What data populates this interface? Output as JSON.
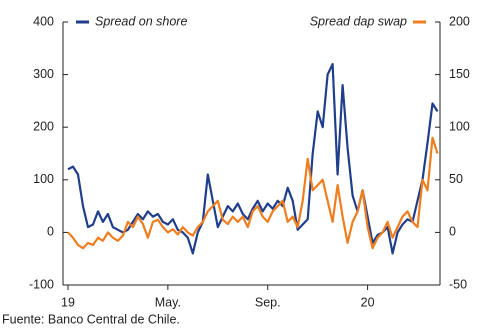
{
  "chart_data": {
    "type": "line",
    "x": [
      0,
      0.2,
      0.4,
      0.6,
      0.8,
      1,
      1.2,
      1.4,
      1.6,
      1.8,
      2,
      2.2,
      2.4,
      2.6,
      2.8,
      3,
      3.2,
      3.4,
      3.6,
      3.8,
      4,
      4.2,
      4.4,
      4.6,
      4.8,
      5,
      5.2,
      5.4,
      5.6,
      5.8,
      6,
      6.2,
      6.4,
      6.6,
      6.8,
      7,
      7.2,
      7.4,
      7.6,
      7.8,
      8,
      8.2,
      8.4,
      8.6,
      8.8,
      9,
      9.2,
      9.4,
      9.6,
      9.8,
      10,
      10.2,
      10.4,
      10.6,
      10.8,
      11,
      11.2,
      11.4,
      11.6,
      11.8,
      12,
      12.2,
      12.4,
      12.6,
      12.8,
      13,
      13.2,
      13.4,
      13.6,
      13.8,
      14,
      14.2,
      14.4,
      14.6,
      14.8
    ],
    "series": [
      {
        "name": "Spread on shore",
        "color": "#1f3e8c",
        "axis": "y",
        "values": [
          120,
          125,
          110,
          50,
          10,
          15,
          40,
          20,
          35,
          10,
          5,
          0,
          5,
          20,
          35,
          25,
          40,
          30,
          35,
          20,
          15,
          25,
          5,
          0,
          -10,
          -40,
          0,
          20,
          110,
          60,
          10,
          30,
          50,
          40,
          55,
          35,
          25,
          45,
          60,
          40,
          55,
          45,
          60,
          50,
          85,
          60,
          5,
          15,
          25,
          150,
          230,
          200,
          300,
          320,
          110,
          280,
          160,
          70,
          40,
          80,
          30,
          -20,
          -5,
          0,
          10,
          -40,
          0,
          15,
          25,
          20,
          60,
          100,
          170,
          245,
          230
        ]
      },
      {
        "name": "Spread dap swap",
        "color": "#f07d1e",
        "axis": "y2",
        "values": [
          0,
          -5,
          -12,
          -15,
          -10,
          -12,
          -5,
          -8,
          0,
          -5,
          -8,
          -3,
          10,
          5,
          15,
          8,
          -5,
          10,
          12,
          5,
          0,
          3,
          -2,
          5,
          0,
          -3,
          5,
          10,
          20,
          25,
          30,
          12,
          8,
          15,
          10,
          15,
          5,
          20,
          25,
          15,
          10,
          20,
          25,
          30,
          10,
          15,
          5,
          30,
          70,
          40,
          45,
          50,
          30,
          10,
          45,
          15,
          -10,
          10,
          20,
          40,
          5,
          -15,
          -5,
          0,
          10,
          -5,
          5,
          15,
          20,
          10,
          5,
          50,
          40,
          90,
          75
        ]
      }
    ],
    "xlim": [
      -0.2,
      14.9
    ],
    "xticks": [
      {
        "value": 0,
        "label": "19"
      },
      {
        "value": 4,
        "label": "May."
      },
      {
        "value": 8,
        "label": "Sep."
      },
      {
        "value": 12,
        "label": "20"
      }
    ],
    "ylim": [
      -100,
      400
    ],
    "yticks": [
      -100,
      0,
      100,
      200,
      300,
      400
    ],
    "y2lim": [
      -50,
      200
    ],
    "y2ticks": [
      -50,
      0,
      50,
      100,
      150,
      200
    ],
    "source": "Fuente: Banco Central de Chile."
  }
}
